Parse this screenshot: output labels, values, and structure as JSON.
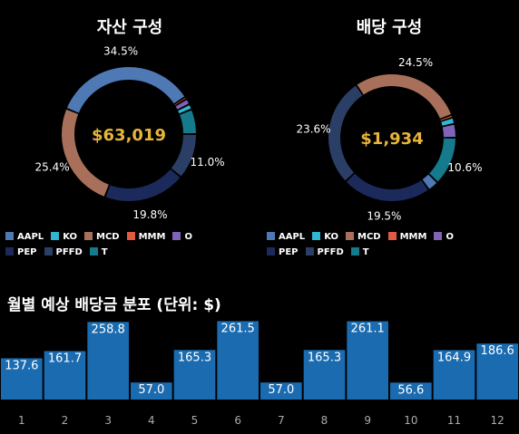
{
  "chart_data": [
    {
      "type": "pie",
      "title": "자산 구성",
      "center_label": "$63,019",
      "categories": [
        "AAPL",
        "KO",
        "MCD",
        "MMM",
        "O",
        "PEP",
        "PFFD",
        "T"
      ],
      "values": [
        34.5,
        1.3,
        25.4,
        0.6,
        1.4,
        19.8,
        11.0,
        6.0
      ],
      "data_labels": [
        "34.5%",
        "",
        "25.4%",
        "",
        "",
        "19.8%",
        "11.0%",
        ""
      ],
      "slice_order": [
        "PFFD",
        "PEP",
        "MCD",
        "AAPL",
        "MMM",
        "O",
        "KO",
        "T"
      ],
      "colors": {
        "AAPL": "#4e79b5",
        "KO": "#2fb6d0",
        "MCD": "#a8705a",
        "MMM": "#e05a40",
        "O": "#8064b8",
        "PEP": "#1b2a5a",
        "PFFD": "#2b3f66",
        "T": "#147a8c"
      },
      "legend_position": "bottom"
    },
    {
      "type": "pie",
      "title": "배당 구성",
      "center_label": "$1,934",
      "categories": [
        "AAPL",
        "KO",
        "MCD",
        "MMM",
        "O",
        "PEP",
        "PFFD",
        "T"
      ],
      "values": [
        2.4,
        1.4,
        24.5,
        0.6,
        3.0,
        19.5,
        23.6,
        10.6
      ],
      "data_labels": [
        "",
        "",
        "24.5%",
        "",
        "",
        "19.5%",
        "23.6%",
        "10.6%"
      ],
      "slice_order": [
        "T",
        "AAPL",
        "PEP",
        "PFFD",
        "MCD",
        "MMM",
        "KO",
        "O"
      ],
      "colors": {
        "AAPL": "#4e79b5",
        "KO": "#2fb6d0",
        "MCD": "#a8705a",
        "MMM": "#e05a40",
        "O": "#8064b8",
        "PEP": "#1b2a5a",
        "PFFD": "#2b3f66",
        "T": "#147a8c"
      },
      "legend_position": "bottom"
    },
    {
      "type": "bar",
      "title": "월별 예상 배당금 분포 (단위: $)",
      "categories": [
        "1",
        "2",
        "3",
        "4",
        "5",
        "6",
        "7",
        "8",
        "9",
        "10",
        "11",
        "12"
      ],
      "values": [
        137.6,
        161.7,
        258.8,
        57.0,
        165.3,
        261.5,
        57.0,
        165.3,
        261.1,
        56.6,
        164.9,
        186.6
      ],
      "data_labels": [
        "137.6",
        "161.7",
        "258.8",
        "57.0",
        "165.3",
        "261.5",
        "57.0",
        "165.3",
        "261.1",
        "56.6",
        "164.9",
        "186.6"
      ],
      "bar_color": "#1a6bb0",
      "label_color": "#ffffff",
      "tick_color": "#aaaaaa",
      "ylim": [
        0,
        290
      ]
    }
  ]
}
